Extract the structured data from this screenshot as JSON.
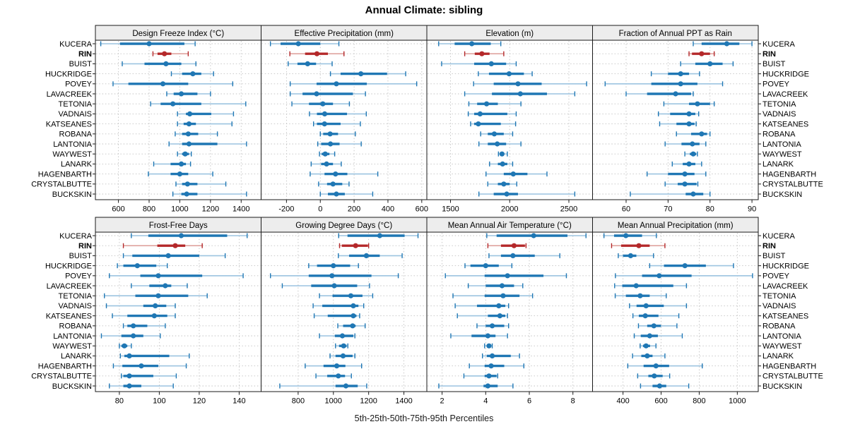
{
  "title": "Annual Climate: sibling",
  "caption": "5th-25th-50th-75th-95th Percentiles",
  "stations": [
    "KUCERA",
    "RIN",
    "BUIST",
    "HUCKRIDGE",
    "POVEY",
    "LAVACREEK",
    "TETONIA",
    "VADNAIS",
    "KATSEANES",
    "ROBANA",
    "LANTONIA",
    "WAYWEST",
    "LANARK",
    "HAGENBARTH",
    "CRYSTALBUTTE",
    "BUCKSKIN"
  ],
  "highlight_station": "RIN",
  "colors": {
    "blue": "#1f77b4",
    "blue_light": "#9cc4e0",
    "red": "#b4282a",
    "red_light": "#dfa39f",
    "strip_bg": "#ededed",
    "grid": "#c2c2c2",
    "border": "#1a1a1a",
    "text": "#000000"
  },
  "chart_data": {
    "type": "dotplot-percentiles",
    "percentiles": [
      5,
      25,
      50,
      75,
      95
    ],
    "grid": "dotted at x ticks and station rows",
    "legend_position": "none",
    "panels": [
      {
        "title": "Design Freeze Index (°C)",
        "row": 0,
        "col": 0,
        "xlim": [
          450,
          1530
        ],
        "ticks": [
          600,
          800,
          1000,
          1200,
          1400
        ],
        "values": [
          [
            485,
            610,
            800,
            1030,
            1100
          ],
          [
            825,
            855,
            900,
            945,
            1055
          ],
          [
            625,
            770,
            910,
            1010,
            1105
          ],
          [
            945,
            1015,
            1085,
            1140,
            1220
          ],
          [
            565,
            665,
            890,
            1055,
            1345
          ],
          [
            915,
            960,
            1010,
            1115,
            1200
          ],
          [
            810,
            875,
            955,
            1140,
            1430
          ],
          [
            985,
            1040,
            1065,
            1205,
            1350
          ],
          [
            985,
            1025,
            1060,
            1105,
            1340
          ],
          [
            970,
            1015,
            1055,
            1120,
            1245
          ],
          [
            930,
            1015,
            1060,
            1245,
            1435
          ],
          [
            985,
            1015,
            1035,
            1060,
            1075
          ],
          [
            830,
            940,
            1010,
            1040,
            1070
          ],
          [
            795,
            940,
            1000,
            1055,
            1215
          ],
          [
            975,
            1015,
            1050,
            1115,
            1300
          ],
          [
            955,
            1010,
            1045,
            1115,
            1435
          ]
        ]
      },
      {
        "title": "Effective Precipitation (mm)",
        "row": 0,
        "col": 1,
        "xlim": [
          -350,
          630
        ],
        "ticks": [
          -200,
          0,
          200,
          400,
          600
        ],
        "values": [
          [
            -295,
            -235,
            -130,
            0,
            110
          ],
          [
            -180,
            -90,
            -20,
            45,
            140
          ],
          [
            -190,
            -135,
            -75,
            -25,
            70
          ],
          [
            60,
            120,
            240,
            395,
            505
          ],
          [
            -178,
            -22,
            95,
            275,
            570
          ],
          [
            -178,
            -105,
            -22,
            193,
            267
          ],
          [
            -168,
            -67,
            15,
            75,
            172
          ],
          [
            -64,
            -20,
            26,
            158,
            272
          ],
          [
            -40,
            -20,
            25,
            120,
            237
          ],
          [
            0,
            17,
            58,
            105,
            207
          ],
          [
            -15,
            5,
            60,
            114,
            242
          ],
          [
            -5,
            8,
            29,
            54,
            85
          ],
          [
            -54,
            5,
            37,
            75,
            124
          ],
          [
            -60,
            25,
            90,
            160,
            340
          ],
          [
            -10,
            40,
            75,
            130,
            170
          ],
          [
            0,
            45,
            95,
            145,
            310
          ]
        ]
      },
      {
        "title": "Elevation (m)",
        "row": 0,
        "col": 2,
        "xlim": [
          1300,
          2700
        ],
        "ticks": [
          1500,
          2000,
          2500
        ],
        "values": [
          [
            1400,
            1535,
            1680,
            1840,
            1925
          ],
          [
            1620,
            1705,
            1765,
            1830,
            1950
          ],
          [
            1425,
            1700,
            1845,
            1970,
            2055
          ],
          [
            1735,
            1825,
            1995,
            2120,
            2190
          ],
          [
            1695,
            1865,
            2070,
            2270,
            2650
          ],
          [
            1620,
            1850,
            2090,
            2315,
            2550
          ],
          [
            1655,
            1725,
            1805,
            1900,
            2095
          ],
          [
            1650,
            1700,
            1750,
            1980,
            2055
          ],
          [
            1670,
            1700,
            1735,
            1925,
            2050
          ],
          [
            1755,
            1815,
            1870,
            1950,
            2025
          ],
          [
            1740,
            1815,
            1895,
            1970,
            2095
          ],
          [
            1905,
            1920,
            1935,
            1950,
            1980
          ],
          [
            1830,
            1900,
            1940,
            1980,
            2025
          ],
          [
            1800,
            1950,
            2030,
            2150,
            2315
          ],
          [
            1815,
            1900,
            1950,
            2000,
            2060
          ],
          [
            1740,
            1865,
            1975,
            2070,
            2550
          ]
        ]
      },
      {
        "title": "Fraction of Annual PPT as Rain",
        "row": 0,
        "col": 3,
        "xlim": [
          52,
          91.5
        ],
        "ticks": [
          60,
          70,
          80,
          90
        ],
        "values": [
          [
            76,
            78,
            84,
            87,
            90
          ],
          [
            75,
            75.7,
            78,
            80,
            81
          ],
          [
            73,
            76.5,
            80,
            83,
            85.5
          ],
          [
            66,
            70,
            73,
            75,
            77.5
          ],
          [
            55,
            66,
            73,
            77,
            83
          ],
          [
            60,
            65,
            71.8,
            75.5,
            76
          ],
          [
            69,
            75,
            77,
            80,
            81
          ],
          [
            67.7,
            70.5,
            75,
            76.5,
            77.3
          ],
          [
            68,
            72,
            75,
            76.3,
            76.7
          ],
          [
            72,
            75.5,
            78,
            79.3,
            80
          ],
          [
            69.3,
            73.2,
            75.8,
            77.5,
            79
          ],
          [
            74,
            75.2,
            76,
            76.7,
            77
          ],
          [
            71,
            73.5,
            75,
            76.5,
            78
          ],
          [
            65,
            70,
            74,
            76.3,
            79
          ],
          [
            69.3,
            72.3,
            74,
            76.8,
            77.1
          ],
          [
            61,
            74.2,
            76,
            78.4,
            80
          ]
        ]
      },
      {
        "title": "Frost-Free Days",
        "row": 1,
        "col": 0,
        "xlim": [
          68,
          151
        ],
        "ticks": [
          80,
          100,
          120,
          140
        ],
        "values": [
          [
            86,
            94.5,
            111,
            134,
            144
          ],
          [
            82,
            99,
            108,
            113,
            121.5
          ],
          [
            82,
            86.5,
            104.5,
            120,
            133
          ],
          [
            79,
            82,
            89,
            98.5,
            104
          ],
          [
            75,
            90.5,
            99.5,
            121.5,
            142
          ],
          [
            86,
            95,
            103,
            106,
            114
          ],
          [
            72.5,
            88,
            99.5,
            114.5,
            124
          ],
          [
            73.5,
            92,
            98,
            103.5,
            108
          ],
          [
            76.5,
            84,
            97.5,
            104,
            108
          ],
          [
            82,
            84,
            87,
            94,
            103
          ],
          [
            71,
            81,
            87,
            92,
            100.5
          ],
          [
            80,
            81,
            82.5,
            84,
            86
          ],
          [
            80.5,
            82.5,
            85,
            105,
            115
          ],
          [
            77,
            81.5,
            91,
            99.5,
            113.5
          ],
          [
            81,
            82,
            85,
            97,
            108.5
          ],
          [
            75,
            82,
            85,
            91,
            107
          ]
        ]
      },
      {
        "title": "Growing Degree Days (°C)",
        "row": 1,
        "col": 1,
        "xlim": [
          590,
          1530
        ],
        "ticks": [
          800,
          1000,
          1200,
          1400
        ],
        "values": [
          [
            1030,
            1080,
            1263,
            1404,
            1480
          ],
          [
            1035,
            1048,
            1126,
            1196,
            1200
          ],
          [
            1028,
            1089,
            1187,
            1263,
            1390
          ],
          [
            860,
            907,
            1000,
            1095,
            1142
          ],
          [
            643,
            860,
            992,
            1216,
            1368
          ],
          [
            710,
            874,
            1005,
            1135,
            1205
          ],
          [
            921,
            995,
            1099,
            1165,
            1223
          ],
          [
            885,
            937,
            1113,
            1142,
            1172
          ],
          [
            891,
            968,
            1113,
            1131,
            1149
          ],
          [
            1025,
            1055,
            1109,
            1126,
            1180
          ],
          [
            921,
            1008,
            1051,
            1113,
            1122
          ],
          [
            1012,
            1032,
            1058,
            1075,
            1082
          ],
          [
            981,
            1012,
            1055,
            1109,
            1122
          ],
          [
            840,
            944,
            1019,
            1068,
            1160
          ],
          [
            901,
            965,
            1028,
            1066,
            1102
          ],
          [
            696,
            1012,
            1071,
            1138,
            1189
          ]
        ]
      },
      {
        "title": "Mean Annual Air Temperature (°C)",
        "row": 1,
        "col": 2,
        "xlim": [
          1.3,
          8.9
        ],
        "ticks": [
          2,
          4,
          6,
          8
        ],
        "values": [
          [
            4.05,
            4.5,
            6.2,
            7.75,
            8.6
          ],
          [
            4.1,
            4.7,
            5.3,
            5.8,
            5.85
          ],
          [
            4.15,
            4.7,
            5.25,
            6.25,
            7.4
          ],
          [
            3.05,
            3.3,
            4.0,
            4.6,
            5.2
          ],
          [
            2.15,
            3.95,
            5.0,
            6.65,
            7.7
          ],
          [
            3.2,
            4.0,
            4.75,
            5.3,
            5.7
          ],
          [
            2.5,
            3.95,
            4.8,
            5.55,
            6.15
          ],
          [
            2.6,
            3.6,
            4.6,
            4.9,
            5.05
          ],
          [
            2.7,
            4.1,
            4.65,
            4.9,
            5.0
          ],
          [
            3.6,
            4.0,
            4.3,
            4.85,
            5.05
          ],
          [
            2.4,
            3.35,
            4.1,
            4.45,
            5.0
          ],
          [
            3.95,
            4.05,
            4.15,
            4.25,
            4.3
          ],
          [
            3.85,
            4.05,
            4.3,
            5.15,
            5.55
          ],
          [
            3.25,
            3.95,
            4.25,
            4.85,
            5.75
          ],
          [
            3.0,
            3.95,
            4.15,
            4.5,
            4.55
          ],
          [
            1.85,
            3.9,
            4.1,
            4.55,
            5.25
          ]
        ]
      },
      {
        "title": "Mean Annual Precipitation (mm)",
        "row": 1,
        "col": 3,
        "xlim": [
          240,
          1110
        ],
        "ticks": [
          400,
          600,
          800,
          1000
        ],
        "values": [
          [
            300,
            353,
            415,
            500,
            575
          ],
          [
            340,
            390,
            483,
            540,
            620
          ],
          [
            375,
            400,
            440,
            470,
            560
          ],
          [
            540,
            615,
            725,
            835,
            980
          ],
          [
            360,
            500,
            590,
            760,
            1080
          ],
          [
            356,
            396,
            469,
            664,
            733
          ],
          [
            359,
            415,
            490,
            540,
            627
          ],
          [
            434,
            471,
            521,
            614,
            733
          ],
          [
            452,
            483,
            517,
            586,
            693
          ],
          [
            481,
            527,
            562,
            599,
            683
          ],
          [
            459,
            493,
            540,
            583,
            711
          ],
          [
            490,
            505,
            521,
            542,
            573
          ],
          [
            450,
            496,
            527,
            555,
            620
          ],
          [
            425,
            508,
            573,
            642,
            816
          ],
          [
            477,
            533,
            564,
            608,
            645
          ],
          [
            492,
            555,
            592,
            627,
            745
          ]
        ]
      }
    ]
  }
}
